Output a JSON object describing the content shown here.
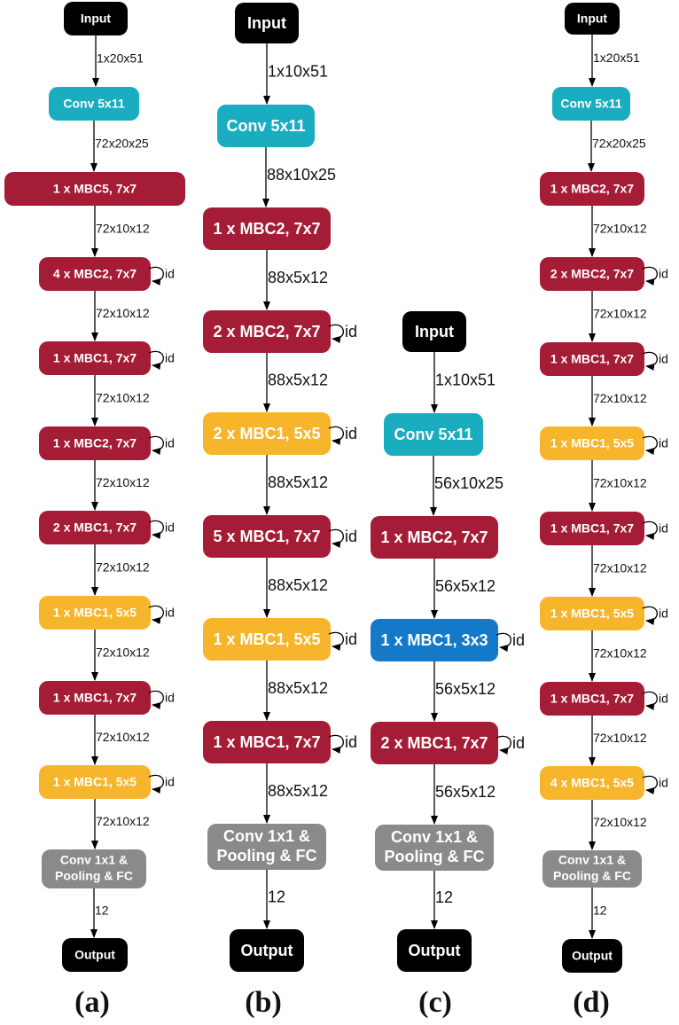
{
  "colors": {
    "io": "#000000",
    "conv": "#1AADC0",
    "mbc7": "#A51C36",
    "mbc5": "#F7B52C",
    "mbc3": "#1479C9",
    "head": "#8A8A8A",
    "text": "#FFFFFF"
  },
  "self_loop_label": "id",
  "panels": [
    {
      "label": "(a)",
      "nodes": [
        {
          "text": "Input",
          "kind": "io"
        },
        {
          "text": "Conv 5x11",
          "kind": "conv"
        },
        {
          "text": "1 x MBC5, 7x7",
          "kind": "mbc7"
        },
        {
          "text": "4 x MBC2, 7x7",
          "kind": "mbc7",
          "loop": true
        },
        {
          "text": "1 x MBC1, 7x7",
          "kind": "mbc7",
          "loop": true
        },
        {
          "text": "1 x MBC2, 7x7",
          "kind": "mbc7",
          "loop": true
        },
        {
          "text": "2 x MBC1, 7x7",
          "kind": "mbc7",
          "loop": true
        },
        {
          "text": "1 x MBC1, 5x5",
          "kind": "mbc5",
          "loop": true
        },
        {
          "text": "1 x MBC1, 7x7",
          "kind": "mbc7",
          "loop": true
        },
        {
          "text": "1 x MBC1, 5x5",
          "kind": "mbc5",
          "loop": true
        },
        {
          "text": [
            "Conv 1x1 &",
            "Pooling & FC"
          ],
          "kind": "head"
        },
        {
          "text": "Output",
          "kind": "io"
        }
      ],
      "edges": [
        "1x20x51",
        "72x20x25",
        "72x10x12",
        "72x10x12",
        "72x10x12",
        "72x10x12",
        "72x10x12",
        "72x10x12",
        "72x10x12",
        "72x10x12",
        "12"
      ]
    },
    {
      "label": "(b)",
      "nodes": [
        {
          "text": "Input",
          "kind": "io"
        },
        {
          "text": "Conv 5x11",
          "kind": "conv"
        },
        {
          "text": "1 x MBC2, 7x7",
          "kind": "mbc7"
        },
        {
          "text": "2 x MBC2, 7x7",
          "kind": "mbc7",
          "loop": true
        },
        {
          "text": "2 x MBC1, 5x5",
          "kind": "mbc5",
          "loop": true
        },
        {
          "text": "5 x MBC1, 7x7",
          "kind": "mbc7",
          "loop": true
        },
        {
          "text": "1 x MBC1, 5x5",
          "kind": "mbc5",
          "loop": true
        },
        {
          "text": "1 x MBC1, 7x7",
          "kind": "mbc7",
          "loop": true
        },
        {
          "text": [
            "Conv 1x1 &",
            "Pooling & FC"
          ],
          "kind": "head"
        },
        {
          "text": "Output",
          "kind": "io"
        }
      ],
      "edges": [
        "1x10x51",
        "88x10x25",
        "88x5x12",
        "88x5x12",
        "88x5x12",
        "88x5x12",
        "88x5x12",
        "88x5x12",
        "12"
      ]
    },
    {
      "label": "(c)",
      "nodes": [
        {
          "text": "Input",
          "kind": "io"
        },
        {
          "text": "Conv 5x11",
          "kind": "conv"
        },
        {
          "text": "1 x MBC2, 7x7",
          "kind": "mbc7"
        },
        {
          "text": "1 x MBC1, 3x3",
          "kind": "mbc3",
          "loop": true
        },
        {
          "text": "2 x MBC1, 7x7",
          "kind": "mbc7",
          "loop": true
        },
        {
          "text": [
            "Conv 1x1 &",
            "Pooling & FC"
          ],
          "kind": "head"
        },
        {
          "text": "Output",
          "kind": "io"
        }
      ],
      "edges": [
        "1x10x51",
        "56x10x25",
        "56x5x12",
        "56x5x12",
        "56x5x12",
        "12"
      ]
    },
    {
      "label": "(d)",
      "nodes": [
        {
          "text": "Input",
          "kind": "io"
        },
        {
          "text": "Conv 5x11",
          "kind": "conv"
        },
        {
          "text": "1 x MBC2, 7x7",
          "kind": "mbc7"
        },
        {
          "text": "2 x MBC2, 7x7",
          "kind": "mbc7",
          "loop": true
        },
        {
          "text": "1 x MBC1, 7x7",
          "kind": "mbc7",
          "loop": true
        },
        {
          "text": "1 x MBC1, 5x5",
          "kind": "mbc5",
          "loop": true
        },
        {
          "text": "1 x MBC1, 7x7",
          "kind": "mbc7",
          "loop": true
        },
        {
          "text": "1 x MBC1, 5x5",
          "kind": "mbc5",
          "loop": true
        },
        {
          "text": "1 x MBC1, 7x7",
          "kind": "mbc7",
          "loop": true
        },
        {
          "text": "4 x MBC1, 5x5",
          "kind": "mbc5",
          "loop": true
        },
        {
          "text": [
            "Conv 1x1 &",
            "Pooling & FC"
          ],
          "kind": "head"
        },
        {
          "text": "Output",
          "kind": "io"
        }
      ],
      "edges": [
        "1x20x51",
        "72x20x25",
        "72x10x12",
        "72x10x12",
        "72x10x12",
        "72x10x12",
        "72x10x12",
        "72x10x12",
        "72x10x12",
        "72x10x12",
        "12"
      ]
    }
  ]
}
